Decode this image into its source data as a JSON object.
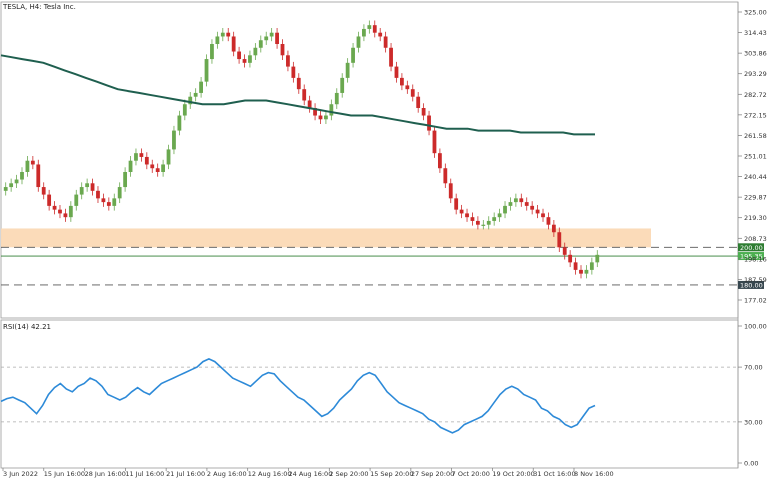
{
  "chart_data": [
    {
      "type": "candlestick",
      "title": "TESLA, H4:  Tesla Inc.",
      "price_axis_ticks": [
        "325.00",
        "314.43",
        "303.86",
        "293.29",
        "282.72",
        "272.15",
        "261.58",
        "251.01",
        "240.44",
        "229.87",
        "219.30",
        "208.73",
        "198.16",
        "187.59",
        "177.02"
      ],
      "ylim": [
        172,
        325
      ],
      "moving_average_color": "#1f5f4f",
      "bull_color": "#6aa84f",
      "bear_color": "#cc2a2a",
      "zone": {
        "low": 200,
        "high": 210,
        "color": "#fbd9b5"
      },
      "levels": [
        {
          "value": 200.0,
          "label": "200.00",
          "style": "dashed",
          "label_bg": "#2e7d32"
        },
        {
          "value": 195.35,
          "label": "195.35",
          "style": "solid",
          "label_bg": "#4caf50"
        },
        {
          "value": 180.0,
          "label": "180.00",
          "style": "dashed",
          "label_bg": "#37474f"
        }
      ],
      "series": [
        {
          "role": "price",
          "values": [
            232,
            234,
            236,
            240,
            246,
            244,
            232,
            228,
            222,
            220,
            218,
            216,
            222,
            228,
            232,
            234,
            230,
            226,
            224,
            222,
            226,
            232,
            240,
            246,
            250,
            248,
            244,
            242,
            240,
            244,
            252,
            262,
            270,
            276,
            280,
            282,
            288,
            300,
            308,
            312,
            314,
            312,
            304,
            300,
            298,
            302,
            306,
            310,
            312,
            314,
            308,
            302,
            296,
            290,
            284,
            278,
            274,
            270,
            268,
            270,
            276,
            282,
            290,
            298,
            306,
            312,
            316,
            318,
            314,
            312,
            306,
            296,
            290,
            286,
            284,
            280,
            274,
            270,
            262,
            250,
            242,
            234,
            226,
            220,
            218,
            216,
            214,
            212,
            212,
            214,
            216,
            218,
            222,
            224,
            226,
            224,
            222,
            220,
            218,
            216,
            212,
            208,
            200,
            196,
            192,
            188,
            186,
            188,
            192,
            196
          ]
        },
        {
          "role": "moving-average",
          "values": [
            302,
            301,
            300,
            299,
            298,
            296,
            294,
            292,
            290,
            288,
            286,
            284,
            283,
            282,
            281,
            280,
            279,
            278,
            277,
            276,
            276,
            276,
            277,
            278,
            278,
            278,
            277,
            276,
            275,
            274,
            273,
            272,
            271,
            270,
            270,
            270,
            269,
            268,
            267,
            266,
            265,
            264,
            263,
            263,
            263,
            262,
            262,
            262,
            262,
            261,
            261,
            261,
            261,
            261,
            260,
            260,
            260
          ]
        }
      ],
      "x_tick_labels": [
        "3 Jun 2022",
        "15 Jun 16:00",
        "28 Jun 16:00",
        "11 Jul 16:00",
        "21 Jul 16:00",
        "2 Aug 16:00",
        "12 Aug 16:00",
        "24 Aug 16:00",
        "2 Sep 20:00",
        "15 Sep 20:00",
        "27 Sep 20:00",
        "7 Oct 20:00",
        "19 Oct 20:00",
        "31 Oct 16:00",
        "8 Nov 16:00"
      ]
    },
    {
      "type": "line",
      "title": "RSI(14) 42.21",
      "y_ticks": [
        "100.00",
        "70.00",
        "30.00",
        "0.00"
      ],
      "ylim": [
        0,
        100
      ],
      "levels": [
        70,
        30
      ],
      "line_color": "#2d8ad8",
      "series": [
        {
          "values": [
            45,
            47,
            48,
            46,
            44,
            40,
            36,
            42,
            50,
            55,
            58,
            54,
            52,
            56,
            58,
            62,
            60,
            56,
            50,
            48,
            46,
            48,
            52,
            55,
            52,
            50,
            54,
            58,
            60,
            62,
            64,
            66,
            68,
            70,
            74,
            76,
            74,
            70,
            66,
            62,
            60,
            58,
            56,
            60,
            64,
            66,
            65,
            60,
            56,
            52,
            48,
            46,
            42,
            38,
            34,
            36,
            40,
            46,
            50,
            54,
            60,
            64,
            66,
            64,
            58,
            52,
            48,
            44,
            42,
            40,
            38,
            36,
            32,
            30,
            26,
            24,
            22,
            24,
            28,
            30,
            32,
            34,
            38,
            44,
            50,
            54,
            56,
            54,
            50,
            48,
            46,
            40,
            38,
            34,
            32,
            28,
            26,
            28,
            34,
            40,
            42
          ]
        }
      ]
    }
  ]
}
